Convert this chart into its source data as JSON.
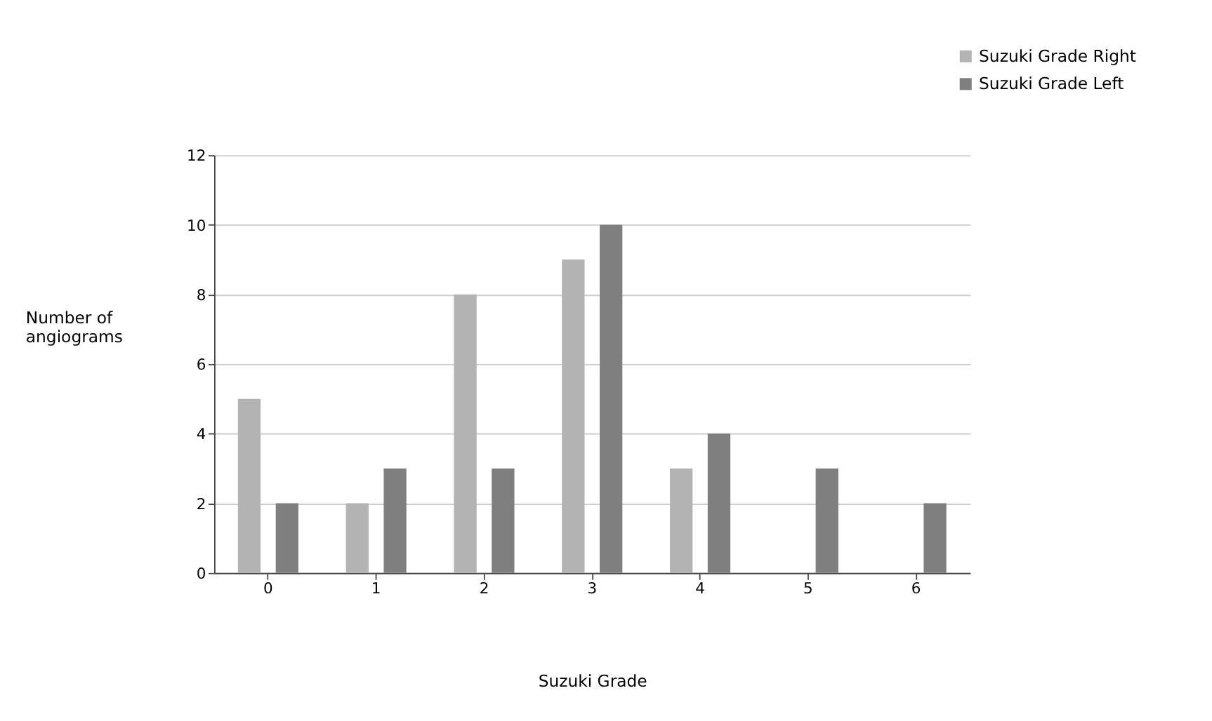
{
  "chart_data": {
    "type": "bar",
    "xlabel": "Suzuki Grade",
    "ylabel": "Number of angiograms",
    "categories": [
      "0",
      "1",
      "2",
      "3",
      "4",
      "5",
      "6"
    ],
    "series": [
      {
        "name": "Suzuki Grade Right",
        "color": "#b3b3b3",
        "values": [
          5,
          2,
          8,
          9,
          3,
          null,
          null
        ]
      },
      {
        "name": "Suzuki Grade Left",
        "color": "#7f7f7f",
        "values": [
          2,
          3,
          3,
          10,
          4,
          3,
          2
        ]
      }
    ],
    "ylim": [
      0,
      12
    ],
    "yticks": [
      0,
      2,
      4,
      6,
      8,
      10,
      12
    ],
    "grid": "y",
    "legend": "top right"
  }
}
